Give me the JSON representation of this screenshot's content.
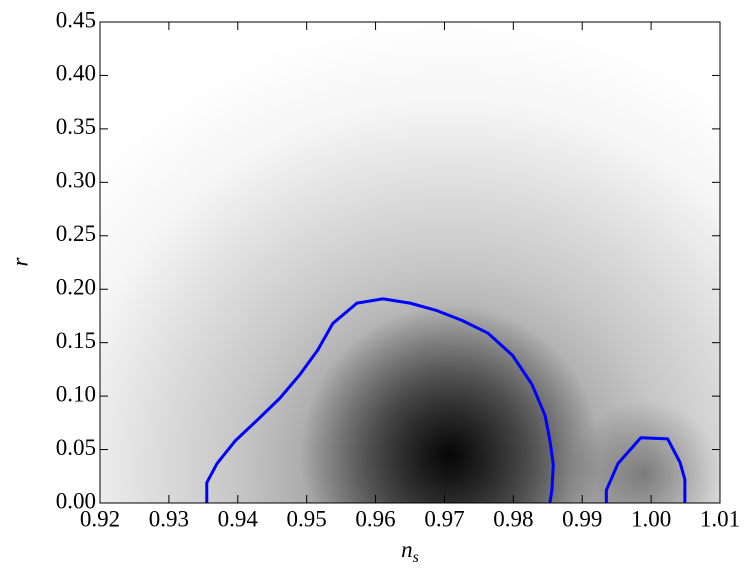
{
  "chart_data": {
    "type": "contour",
    "xlabel": {
      "text": "n",
      "subscript": "s"
    },
    "ylabel": "r",
    "xlim": [
      0.92,
      1.01
    ],
    "ylim": [
      0,
      0.45
    ],
    "xticks": [
      0.92,
      0.93,
      0.94,
      0.95,
      0.96,
      0.97,
      0.98,
      0.99,
      {
        "value": 1,
        "label": "1.00"
      },
      1.01
    ],
    "yticks": [
      {
        "value": 0,
        "label": "0.00"
      },
      0.05,
      {
        "value": 0.1,
        "label": "0.10"
      },
      0.15,
      {
        "value": 0.2,
        "label": "0.20"
      },
      0.25,
      {
        "value": 0.3,
        "label": "0.30"
      },
      0.35,
      {
        "value": 0.4,
        "label": "0.40"
      },
      0.45
    ],
    "series": [
      {
        "color": "#0000ff",
        "x": [
          0.9355,
          0.9355,
          0.937,
          0.9396,
          0.9429,
          0.9461,
          0.949,
          0.9516,
          0.9538,
          0.9573,
          0.9611,
          0.965,
          0.9689,
          0.9725,
          0.9763,
          0.9799,
          0.9827,
          0.9846,
          0.9853,
          0.9858,
          0.9856,
          0.9853
        ],
        "y": [
          0,
          0.019,
          0.037,
          0.058,
          0.078,
          0.098,
          0.12,
          0.143,
          0.168,
          0.187,
          0.191,
          0.187,
          0.18,
          0.171,
          0.159,
          0.138,
          0.111,
          0.082,
          0.059,
          0.036,
          0.012,
          0
        ]
      },
      {
        "color": "#0000ff",
        "x": [
          0.9935,
          0.9935,
          0.9952,
          0.9985,
          1.0024,
          1.0042,
          1.0049,
          1.0049
        ],
        "y": [
          0,
          0.012,
          0.037,
          0.061,
          0.06,
          0.038,
          0.022,
          0
        ]
      }
    ]
  }
}
